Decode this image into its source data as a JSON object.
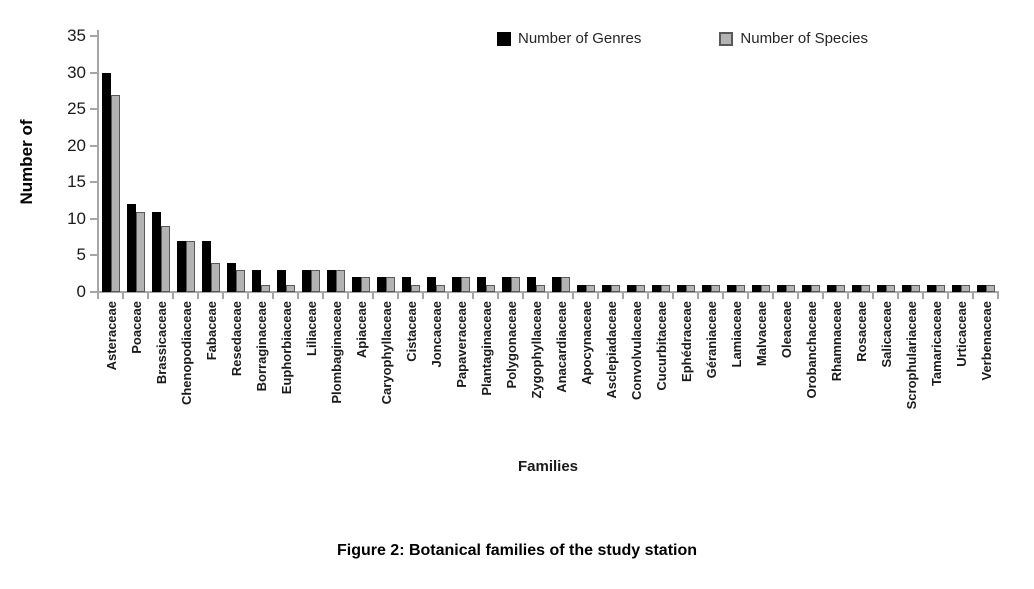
{
  "figure": {
    "caption": "Figure 2: Botanical families of the study station"
  },
  "chart_data": {
    "type": "bar",
    "title": "",
    "xlabel": "Families",
    "ylabel": "Number of",
    "ylim": [
      0,
      35
    ],
    "yticks": [
      0,
      5,
      10,
      15,
      20,
      25,
      30,
      35
    ],
    "grid": false,
    "legend_position": "top-right-inside",
    "categories": [
      "Asteraceae",
      "Poaceae",
      "Brassicaceae",
      "Chenopodiaceae",
      "Fabaceae",
      "Resedaceae",
      "Borraginaceae",
      "Euphorbiaceae",
      "Liliaceae",
      "Plombaginaceae",
      "Apiaceae",
      "Caryophyllaceae",
      "Cistaceae",
      "Joncaceae",
      "Papaveraceae",
      "Plantaginaceae",
      "Polygonaceae",
      "Zygophyllaceae",
      "Anacardiaceae",
      "Apocynaceae",
      "Asclepiadaceae",
      "Convolvulaceae",
      "Cucurbitaceae",
      "Ephédraceae",
      "Géraniaceae",
      "Lamiaceae",
      "Malvaceae",
      "Oleaceae",
      "Orobanchaceae",
      "Rhamnaceae",
      "Rosaceae",
      "Salicaceae",
      "Scrophulariaceae",
      "Tamaricaceae",
      "Urticaceae",
      "Verbenaceae"
    ],
    "series": [
      {
        "name": "Number of Genres",
        "color": "#000000",
        "border": "#000000",
        "values": [
          30,
          12,
          11,
          7,
          7,
          4,
          3,
          3,
          3,
          3,
          2,
          2,
          2,
          2,
          2,
          2,
          2,
          2,
          2,
          1,
          1,
          1,
          1,
          1,
          1,
          1,
          1,
          1,
          1,
          1,
          1,
          1,
          1,
          1,
          1,
          1
        ]
      },
      {
        "name": "Number of Species",
        "color": "#b3b3b3",
        "border": "#595959",
        "values": [
          27,
          11,
          9,
          7,
          4,
          3,
          1,
          1,
          3,
          3,
          2,
          2,
          1,
          1,
          2,
          1,
          2,
          1,
          2,
          1,
          1,
          1,
          1,
          1,
          1,
          1,
          1,
          1,
          1,
          1,
          1,
          1,
          1,
          1,
          1,
          1
        ]
      }
    ]
  },
  "colors": {
    "axis": "#a6a6a6",
    "text": "#1a1a1a"
  }
}
